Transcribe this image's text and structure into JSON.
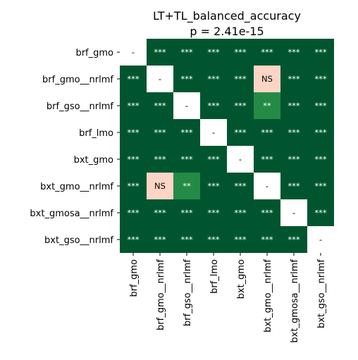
{
  "chart_data": {
    "type": "heatmap",
    "title": "LT+TL_balanced_accuracy",
    "subtitle": "p = 2.41e-15",
    "row_labels": [
      "brf_gmo",
      "brf_gmo__nrlmf",
      "brf_gso__nrlmf",
      "brf_lmo",
      "bxt_gmo",
      "bxt_gmo__nrlmf",
      "bxt_gmosa__nrlmf",
      "bxt_gso__nrlmf"
    ],
    "col_labels": [
      "brf_gmo",
      "brf_gmo__nrlmf",
      "brf_gso__nrlmf",
      "brf_lmo",
      "bxt_gmo",
      "bxt_gmo__nrlmf",
      "bxt_gmosa__nrlmf",
      "bxt_gso__nrlmf"
    ],
    "cells": [
      [
        "-",
        "***",
        "***",
        "***",
        "***",
        "***",
        "***",
        "***"
      ],
      [
        "***",
        "-",
        "***",
        "***",
        "***",
        "NS",
        "***",
        "***"
      ],
      [
        "***",
        "***",
        "-",
        "***",
        "***",
        "**",
        "***",
        "***"
      ],
      [
        "***",
        "***",
        "***",
        "-",
        "***",
        "***",
        "***",
        "***"
      ],
      [
        "***",
        "***",
        "***",
        "***",
        "-",
        "***",
        "***",
        "***"
      ],
      [
        "***",
        "NS",
        "**",
        "***",
        "***",
        "-",
        "***",
        "***"
      ],
      [
        "***",
        "***",
        "***",
        "***",
        "***",
        "***",
        "-",
        "***"
      ],
      [
        "***",
        "***",
        "***",
        "***",
        "***",
        "***",
        "***",
        "-"
      ]
    ],
    "colors": {
      "***": "#00552f",
      "**": "#238b45",
      "NS": "#fdd5c7",
      "-": "#ffffff"
    },
    "text_colors": {
      "***": "#ffffff",
      "**": "#ffffff",
      "NS": "#000000",
      "-": "#000000"
    },
    "grid": false,
    "legend": "none"
  }
}
